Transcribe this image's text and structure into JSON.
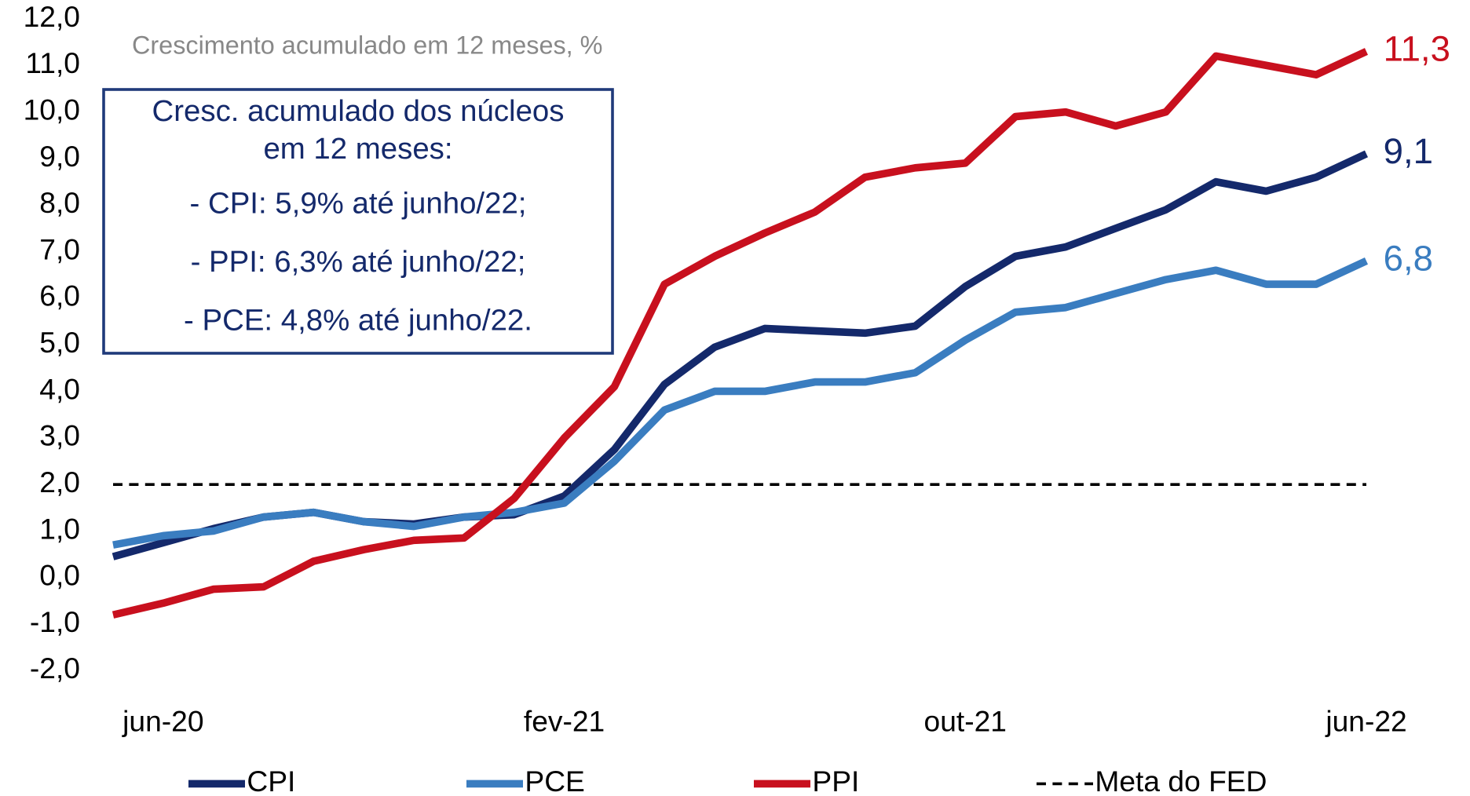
{
  "chart_data": {
    "type": "line",
    "subtitle": "Crescimento acumulado em 12 meses, %",
    "annotation": [
      "Cresc. acumulado dos núcleos",
      "em 12 meses:",
      "- CPI: 5,9% até junho/22;",
      "- PPI: 6,3% até junho/22;",
      "- PCE: 4,8% até junho/22."
    ],
    "categories": [
      null,
      "jun-20",
      null,
      null,
      null,
      null,
      null,
      null,
      null,
      "fev-21",
      null,
      null,
      null,
      null,
      null,
      null,
      null,
      "out-21",
      null,
      null,
      null,
      null,
      null,
      null,
      null,
      "jun-22"
    ],
    "series": [
      {
        "name": "CPI",
        "color": "#14296b",
        "values": [
          0.45,
          0.75,
          1.05,
          1.3,
          1.4,
          1.2,
          1.15,
          1.3,
          1.35,
          1.75,
          2.75,
          4.15,
          4.95,
          5.35,
          5.3,
          5.25,
          5.4,
          6.25,
          6.9,
          7.1,
          7.5,
          7.9,
          8.5,
          8.3,
          8.6,
          9.1
        ],
        "value_labels": [
          null,
          null,
          null,
          null,
          null,
          null,
          null,
          null,
          null,
          null,
          null,
          null,
          null,
          null,
          null,
          null,
          null,
          null,
          null,
          null,
          null,
          null,
          null,
          null,
          null,
          "9,1"
        ]
      },
      {
        "name": "PCE",
        "color": "#3a7dc0",
        "values": [
          0.7,
          0.9,
          1.0,
          1.3,
          1.4,
          1.2,
          1.1,
          1.3,
          1.4,
          1.6,
          2.5,
          3.6,
          4.0,
          4.0,
          4.2,
          4.2,
          4.4,
          5.1,
          5.7,
          5.8,
          6.1,
          6.4,
          6.6,
          6.3,
          6.3,
          6.8
        ],
        "value_labels": [
          null,
          null,
          null,
          null,
          null,
          null,
          null,
          null,
          null,
          null,
          null,
          null,
          null,
          null,
          null,
          null,
          null,
          null,
          null,
          null,
          null,
          null,
          null,
          null,
          null,
          "6,8"
        ]
      },
      {
        "name": "PPI",
        "color": "#c8101e",
        "values": [
          -0.8,
          -0.55,
          -0.25,
          -0.2,
          0.35,
          0.6,
          0.8,
          0.85,
          1.7,
          3.0,
          4.1,
          6.3,
          6.9,
          7.4,
          7.85,
          8.6,
          8.8,
          8.9,
          9.9,
          10.0,
          9.7,
          10.0,
          11.2,
          11.0,
          10.8,
          11.3
        ],
        "value_labels": [
          null,
          null,
          null,
          null,
          null,
          null,
          null,
          null,
          null,
          null,
          null,
          null,
          null,
          null,
          null,
          null,
          null,
          null,
          null,
          null,
          null,
          null,
          null,
          null,
          null,
          "11,3"
        ]
      },
      {
        "name": "Meta do FED",
        "color": "#000000",
        "dashed": true,
        "values": [
          2,
          2,
          2,
          2,
          2,
          2,
          2,
          2,
          2,
          2,
          2,
          2,
          2,
          2,
          2,
          2,
          2,
          2,
          2,
          2,
          2,
          2,
          2,
          2,
          2,
          2
        ]
      }
    ],
    "ylim": [
      -2,
      12
    ],
    "yticks": [
      {
        "value": -2,
        "label": "-2,0"
      },
      {
        "value": -1,
        "label": "-1,0"
      },
      {
        "value": 0,
        "label": "0,0"
      },
      {
        "value": 1,
        "label": "1,0"
      },
      {
        "value": 2,
        "label": "2,0"
      },
      {
        "value": 3,
        "label": "3,0"
      },
      {
        "value": 4,
        "label": "4,0"
      },
      {
        "value": 5,
        "label": "5,0"
      },
      {
        "value": 6,
        "label": "6,0"
      },
      {
        "value": 7,
        "label": "7,0"
      },
      {
        "value": 8,
        "label": "8,0"
      },
      {
        "value": 9,
        "label": "9,0"
      },
      {
        "value": 10,
        "label": "10,0"
      },
      {
        "value": 11,
        "label": "11,0"
      },
      {
        "value": 12,
        "label": "12,0"
      }
    ],
    "grid": false,
    "legend": "bottom"
  }
}
